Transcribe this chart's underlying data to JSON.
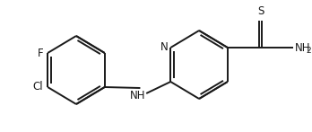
{
  "background_color": "#ffffff",
  "line_color": "#1a1a1a",
  "line_width": 1.4,
  "font_size": 8.5,
  "figsize": [
    3.48,
    1.47
  ],
  "dpi": 100,
  "xlim": [
    0,
    348
  ],
  "ylim": [
    0,
    147
  ]
}
